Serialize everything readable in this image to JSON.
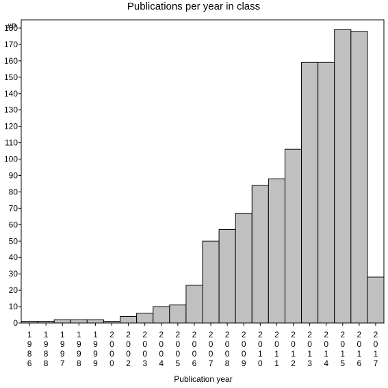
{
  "chart_data": {
    "type": "bar",
    "title": "Publications per year in class",
    "xlabel": "Publication year",
    "ylabel": "#P",
    "categories": [
      "1986",
      "1988",
      "1997",
      "1998",
      "1999",
      "2000",
      "2002",
      "2003",
      "2004",
      "2005",
      "2006",
      "2007",
      "2008",
      "2009",
      "2010",
      "2011",
      "2012",
      "2013",
      "2014",
      "2015",
      "2016",
      "2017"
    ],
    "values": [
      1,
      1,
      2,
      2,
      2,
      1,
      4,
      6,
      10,
      11,
      23,
      50,
      57,
      67,
      84,
      88,
      106,
      159,
      159,
      179,
      178,
      28
    ],
    "ylim": [
      0,
      185
    ],
    "yticks": [
      0,
      10,
      20,
      30,
      40,
      50,
      60,
      70,
      80,
      90,
      100,
      110,
      120,
      130,
      140,
      150,
      160,
      170,
      180
    ],
    "grid": false,
    "bar_color": "#c0c0c0",
    "edge_color": "#000000"
  }
}
